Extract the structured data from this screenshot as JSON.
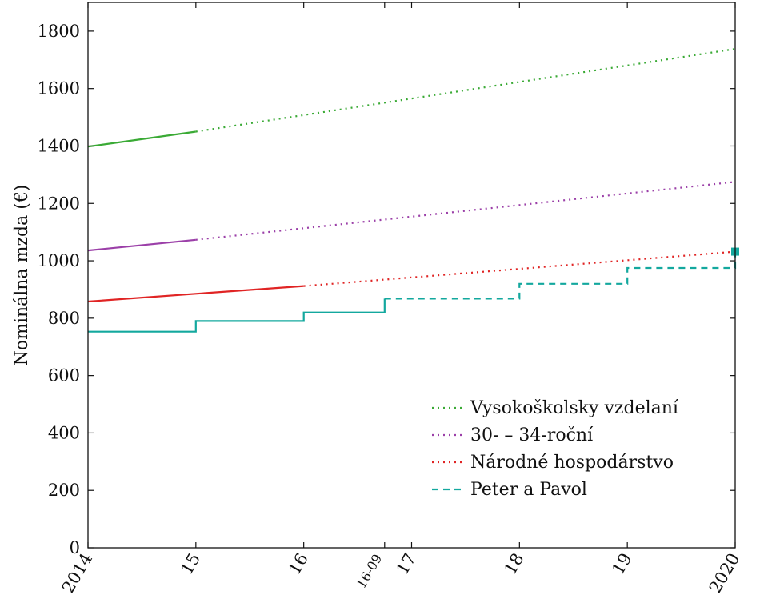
{
  "chart_data": {
    "type": "line",
    "title": "",
    "ylabel": "Nominálna mzda (€)",
    "xlabel": "",
    "xlim": [
      2014,
      2020
    ],
    "ylim": [
      0,
      1900
    ],
    "y_ticks": [
      0,
      200,
      400,
      600,
      800,
      1000,
      1200,
      1400,
      1600,
      1800
    ],
    "x_ticks": [
      {
        "value": 2014,
        "label": "2014"
      },
      {
        "value": 2015,
        "label": "15"
      },
      {
        "value": 2016,
        "label": "16"
      },
      {
        "value": 2016.75,
        "label": "16-09"
      },
      {
        "value": 2017,
        "label": "17"
      },
      {
        "value": 2018,
        "label": "18"
      },
      {
        "value": 2019,
        "label": "19"
      },
      {
        "value": 2020,
        "label": "2020"
      }
    ],
    "grid": false,
    "legend_position": "bottom-right",
    "series": [
      {
        "name": "Vysokoškolsky vzdelaní",
        "color": "#3aaa35",
        "actual": [
          [
            2014,
            1398
          ],
          [
            2015,
            1450
          ]
        ],
        "projected": [
          [
            2015,
            1450
          ],
          [
            2020,
            1738
          ]
        ]
      },
      {
        "name": "30- – 34-roční",
        "color": "#9b3fa8",
        "actual": [
          [
            2014,
            1036
          ],
          [
            2015,
            1073
          ]
        ],
        "projected": [
          [
            2015,
            1073
          ],
          [
            2020,
            1275
          ]
        ]
      },
      {
        "name": "Národné hospodárstvo",
        "color": "#e02424",
        "actual": [
          [
            2014,
            858
          ],
          [
            2016,
            912
          ]
        ],
        "projected": [
          [
            2016,
            912
          ],
          [
            2020,
            1032
          ]
        ]
      },
      {
        "name": "Peter a Pavol",
        "color": "#13a89e",
        "actual": [
          [
            2014,
            753
          ],
          [
            2015,
            753
          ],
          [
            2015,
            790
          ],
          [
            2016,
            790
          ],
          [
            2016,
            820
          ],
          [
            2016.75,
            820
          ],
          [
            2016.75,
            868
          ]
        ],
        "projected": [
          [
            2016.75,
            868
          ],
          [
            2018,
            868
          ],
          [
            2018,
            920
          ],
          [
            2019,
            920
          ],
          [
            2019,
            975
          ],
          [
            2020,
            975
          ],
          [
            2020,
            1032
          ]
        ],
        "marker": [
          2020,
          1032
        ]
      }
    ]
  }
}
